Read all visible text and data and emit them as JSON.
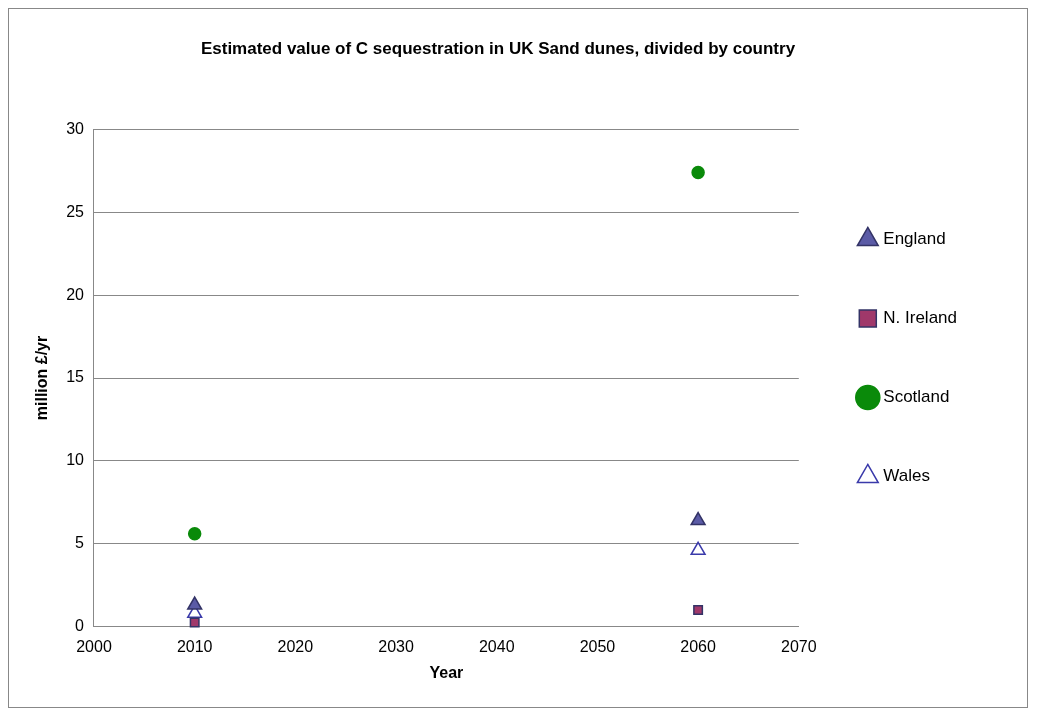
{
  "chart_data": {
    "type": "scatter",
    "title": "Estimated value of C sequestration in UK Sand dunes, divided by country",
    "xlabel": "Year",
    "ylabel": "million £/yr",
    "x": [
      2010,
      2060
    ],
    "xlim": [
      2000,
      2070
    ],
    "xticks": [
      2000,
      2010,
      2020,
      2030,
      2040,
      2050,
      2060,
      2070
    ],
    "ylim": [
      0,
      30
    ],
    "yticks": [
      0,
      5,
      10,
      15,
      20,
      25,
      30
    ],
    "grid": "y",
    "legend": "right",
    "series": [
      {
        "name": "England",
        "color": "#5b5ba6",
        "marker": "triangle",
        "values": [
          1.3,
          6.4
        ]
      },
      {
        "name": "N. Ireland",
        "color": "#a0386a",
        "marker": "square",
        "values": [
          0.25,
          1.0
        ]
      },
      {
        "name": "Scotland",
        "color": "#0a8a0a",
        "marker": "circle",
        "values": [
          5.6,
          27.4
        ]
      },
      {
        "name": "Wales",
        "color": "#3a3aaa",
        "marker": "triangle",
        "values": [
          0.8,
          4.6
        ]
      }
    ]
  }
}
